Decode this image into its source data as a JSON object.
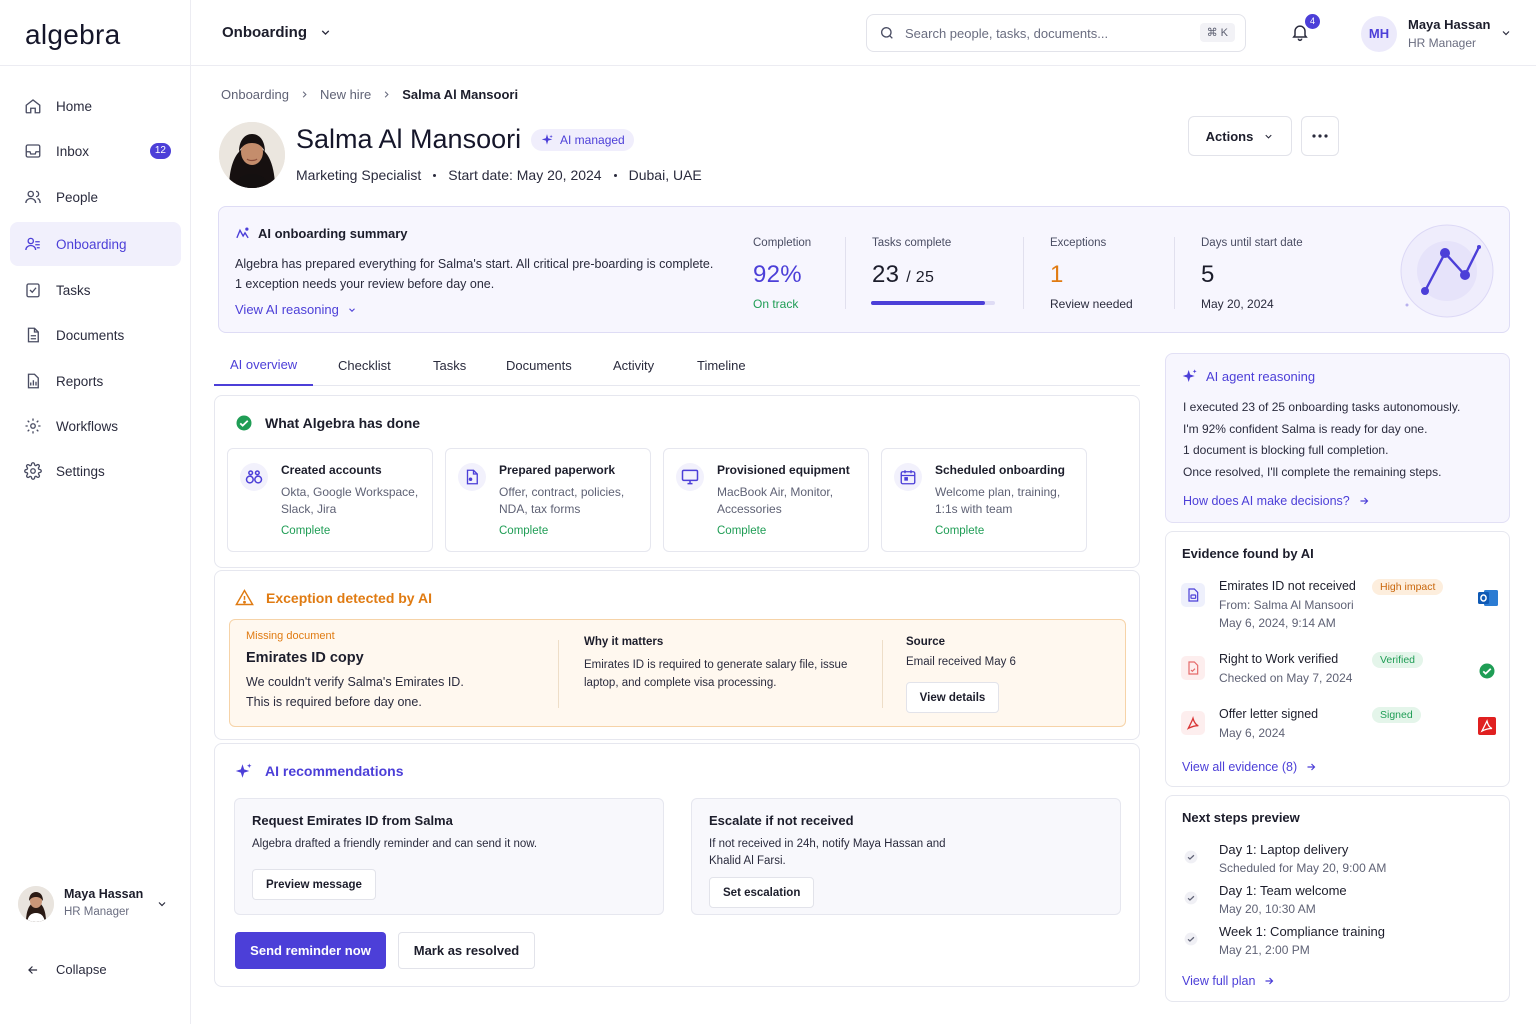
{
  "app": {
    "logo": "algebra",
    "module": "Onboarding"
  },
  "search": {
    "placeholder": "Search people, tasks, documents...",
    "shortcut": "⌘ K"
  },
  "notifications": {
    "count": "4"
  },
  "user": {
    "initials": "MH",
    "name": "Maya Hassan",
    "role": "HR Manager"
  },
  "sidebar": {
    "items": [
      {
        "label": "Home",
        "icon": "home-icon"
      },
      {
        "label": "Inbox",
        "icon": "inbox-icon",
        "badge": "12"
      },
      {
        "label": "People",
        "icon": "people-icon"
      },
      {
        "label": "Onboarding",
        "icon": "onboarding-icon",
        "active": true
      },
      {
        "label": "Tasks",
        "icon": "tasks-icon"
      },
      {
        "label": "Documents",
        "icon": "documents-icon"
      },
      {
        "label": "Reports",
        "icon": "reports-icon"
      },
      {
        "label": "Workflows",
        "icon": "workflows-icon"
      },
      {
        "label": "Settings",
        "icon": "settings-icon"
      }
    ],
    "collapse": "Collapse"
  },
  "breadcrumb": [
    "Onboarding",
    "New hire",
    "Salma Al Mansoori"
  ],
  "profile": {
    "name": "Salma Al Mansoori",
    "badge": "AI managed",
    "title": "Marketing Specialist",
    "start": "Start date: May 20, 2024",
    "location": "Dubai, UAE"
  },
  "header_actions": {
    "actions": "Actions"
  },
  "summary": {
    "title": "AI onboarding summary",
    "line1": "Algebra has prepared everything for Salma's start. All critical pre-boarding is complete.",
    "line2": "1 exception needs your review before day one.",
    "link": "View AI reasoning",
    "stats": {
      "completion": {
        "label": "Completion",
        "value": "92%",
        "sub": "On track"
      },
      "tasks": {
        "label": "Tasks complete",
        "value": "23",
        "total": "/ 25",
        "done": 23,
        "of": 25
      },
      "exceptions": {
        "label": "Exceptions",
        "value": "1",
        "sub": "Review needed"
      },
      "days": {
        "label": "Days until start date",
        "value": "5",
        "sub": "May 20, 2024"
      }
    }
  },
  "tabs": [
    "AI overview",
    "Checklist",
    "Tasks",
    "Documents",
    "Activity",
    "Timeline"
  ],
  "done": {
    "title": "What Algebra has done",
    "items": [
      {
        "title": "Created accounts",
        "desc": "Okta, Google Workspace, Slack, Jira",
        "status": "Complete"
      },
      {
        "title": "Prepared paperwork",
        "desc": "Offer, contract, policies, NDA, tax forms",
        "status": "Complete"
      },
      {
        "title": "Provisioned equipment",
        "desc": "MacBook Air, Monitor, Accessories",
        "status": "Complete"
      },
      {
        "title": "Scheduled onboarding",
        "desc": "Welcome plan, training, 1:1s with team",
        "status": "Complete"
      }
    ]
  },
  "exception": {
    "title": "Exception detected by AI",
    "tag": "Missing document",
    "doc": "Emirates ID copy",
    "desc1": "We couldn't verify Salma's Emirates ID.",
    "desc2": "This is required before day one.",
    "why_label": "Why it matters",
    "why": "Emirates ID is required to generate salary file, issue laptop, and complete visa processing.",
    "source_label": "Source",
    "source": "Email received May 6",
    "view": "View details"
  },
  "recommendations": {
    "title": "AI recommendations",
    "items": [
      {
        "title": "Request Emirates ID from Salma",
        "desc": "Algebra drafted a friendly reminder and can send it now.",
        "button": "Preview message"
      },
      {
        "title": "Escalate if not received",
        "desc": "If not received in 24h, notify Maya Hassan and Khalid Al Farsi.",
        "button": "Set escalation"
      }
    ],
    "primary": "Send reminder now",
    "secondary": "Mark as resolved"
  },
  "reasoning": {
    "title": "AI agent reasoning",
    "lines": [
      "I executed 23 of 25 onboarding tasks autonomously.",
      "I'm 92% confident Salma is ready for day one.",
      "1 document is blocking full completion.",
      "Once resolved, I'll complete the remaining steps."
    ],
    "link": "How does AI make decisions?"
  },
  "evidence": {
    "title": "Evidence found by AI",
    "items": [
      {
        "title": "Emirates ID not received",
        "sub1": "From: Salma Al Mansoori",
        "sub2": "May 6, 2024, 9:14 AM",
        "tag": "High impact"
      },
      {
        "title": "Right to Work verified",
        "sub1": "Checked on May 7, 2024",
        "tag": "Verified"
      },
      {
        "title": "Offer letter signed",
        "sub1": "May 6, 2024",
        "tag": "Signed"
      }
    ],
    "link": "View all evidence (8)"
  },
  "next_steps": {
    "title": "Next steps preview",
    "items": [
      {
        "title": "Day 1: Laptop delivery",
        "sub": "Scheduled for May 20, 9:00 AM"
      },
      {
        "title": "Day 1: Team welcome",
        "sub": "May 20, 10:30 AM"
      },
      {
        "title": "Week 1: Compliance training",
        "sub": "May 21, 2:00 PM"
      }
    ],
    "link": "View full plan"
  },
  "colors": {
    "accent": "#4c3fd8",
    "success": "#1f9d55",
    "warning": "#e07b12"
  }
}
